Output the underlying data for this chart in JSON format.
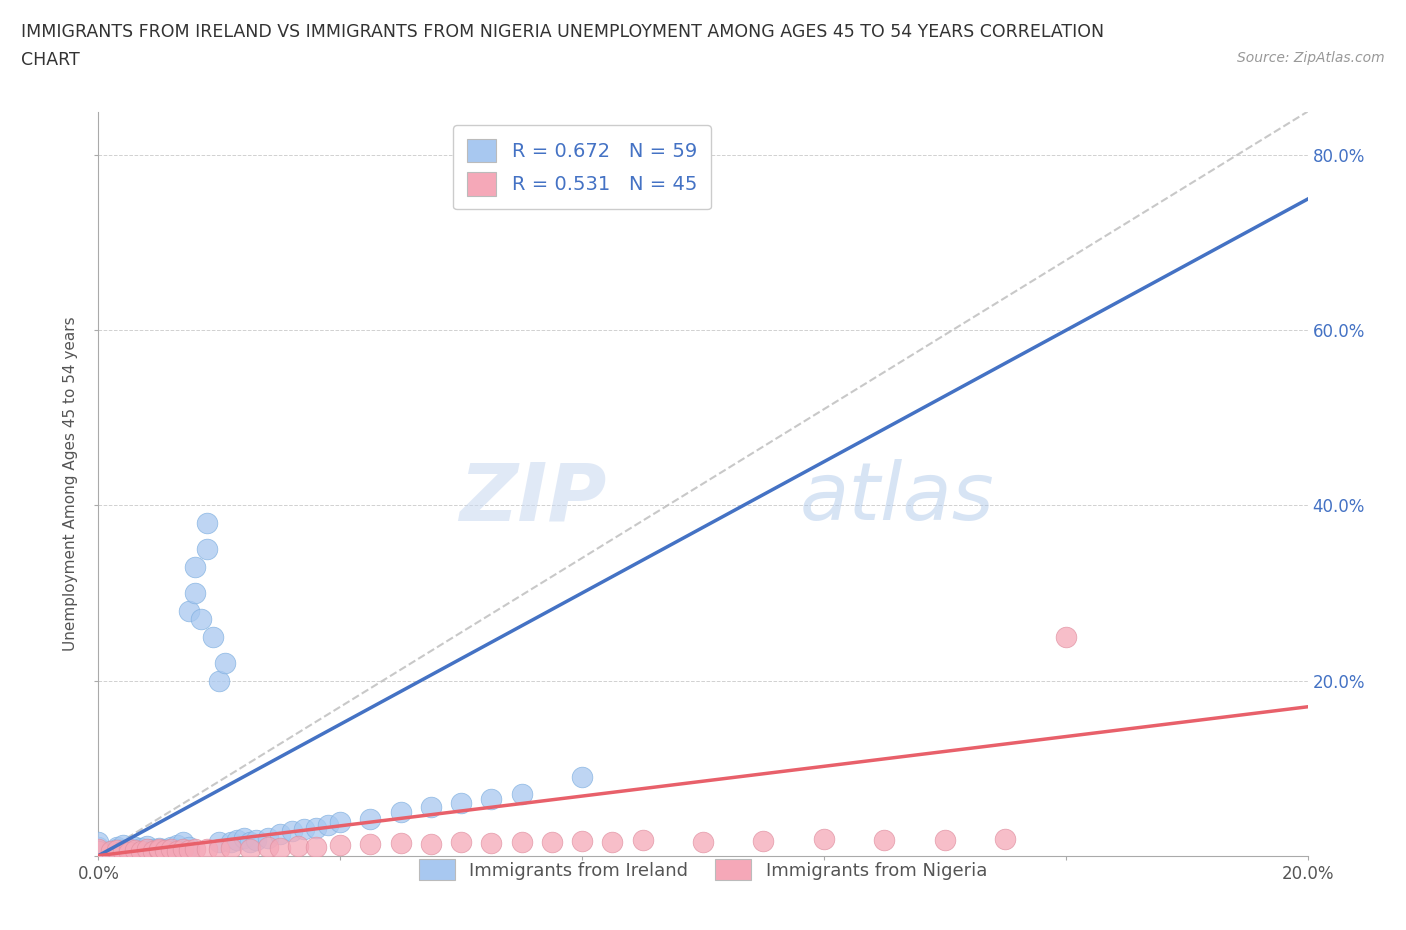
{
  "title_line1": "IMMIGRANTS FROM IRELAND VS IMMIGRANTS FROM NIGERIA UNEMPLOYMENT AMONG AGES 45 TO 54 YEARS CORRELATION",
  "title_line2": "CHART",
  "source_text": "Source: ZipAtlas.com",
  "ylabel": "Unemployment Among Ages 45 to 54 years",
  "xlim": [
    0.0,
    0.2
  ],
  "ylim": [
    0.0,
    0.85
  ],
  "x_ticks": [
    0.0,
    0.04,
    0.08,
    0.12,
    0.16,
    0.2
  ],
  "y_ticks": [
    0.0,
    0.2,
    0.4,
    0.6,
    0.8
  ],
  "ireland_color": "#a8c8f0",
  "nigeria_color": "#f5a8b8",
  "ireland_line_color": "#4472c4",
  "nigeria_line_color": "#e8606a",
  "diagonal_color": "#bbbbbb",
  "watermark_zip": "ZIP",
  "watermark_atlas": "atlas",
  "legend_ireland": "R = 0.672   N = 59",
  "legend_nigeria": "R = 0.531   N = 45",
  "ireland_scatter_x": [
    0.0,
    0.0,
    0.0,
    0.002,
    0.003,
    0.003,
    0.004,
    0.004,
    0.005,
    0.005,
    0.005,
    0.006,
    0.006,
    0.007,
    0.007,
    0.008,
    0.008,
    0.009,
    0.009,
    0.01,
    0.01,
    0.01,
    0.011,
    0.011,
    0.012,
    0.012,
    0.013,
    0.013,
    0.014,
    0.015,
    0.015,
    0.016,
    0.016,
    0.017,
    0.018,
    0.018,
    0.019,
    0.02,
    0.02,
    0.021,
    0.022,
    0.023,
    0.024,
    0.025,
    0.026,
    0.028,
    0.03,
    0.032,
    0.034,
    0.036,
    0.038,
    0.04,
    0.045,
    0.05,
    0.055,
    0.06,
    0.065,
    0.07,
    0.08
  ],
  "ireland_scatter_y": [
    0.01,
    0.015,
    0.005,
    0.005,
    0.01,
    0.008,
    0.006,
    0.012,
    0.005,
    0.007,
    0.003,
    0.008,
    0.01,
    0.006,
    0.009,
    0.007,
    0.011,
    0.005,
    0.008,
    0.006,
    0.009,
    0.004,
    0.008,
    0.005,
    0.01,
    0.007,
    0.012,
    0.008,
    0.015,
    0.01,
    0.28,
    0.33,
    0.3,
    0.27,
    0.35,
    0.38,
    0.25,
    0.016,
    0.2,
    0.22,
    0.015,
    0.018,
    0.02,
    0.015,
    0.018,
    0.02,
    0.025,
    0.028,
    0.03,
    0.032,
    0.035,
    0.038,
    0.042,
    0.05,
    0.055,
    0.06,
    0.065,
    0.07,
    0.09
  ],
  "nigeria_scatter_x": [
    0.0,
    0.0,
    0.002,
    0.003,
    0.004,
    0.005,
    0.005,
    0.006,
    0.007,
    0.008,
    0.009,
    0.01,
    0.01,
    0.011,
    0.012,
    0.013,
    0.014,
    0.015,
    0.016,
    0.018,
    0.02,
    0.022,
    0.025,
    0.028,
    0.03,
    0.033,
    0.036,
    0.04,
    0.045,
    0.05,
    0.055,
    0.06,
    0.065,
    0.07,
    0.075,
    0.08,
    0.085,
    0.09,
    0.1,
    0.11,
    0.12,
    0.13,
    0.14,
    0.15,
    0.16
  ],
  "nigeria_scatter_y": [
    0.005,
    0.008,
    0.005,
    0.006,
    0.005,
    0.007,
    0.004,
    0.006,
    0.005,
    0.007,
    0.005,
    0.006,
    0.008,
    0.006,
    0.007,
    0.005,
    0.008,
    0.006,
    0.007,
    0.008,
    0.007,
    0.009,
    0.008,
    0.01,
    0.009,
    0.011,
    0.01,
    0.012,
    0.013,
    0.014,
    0.013,
    0.015,
    0.014,
    0.016,
    0.015,
    0.017,
    0.016,
    0.018,
    0.016,
    0.017,
    0.019,
    0.018,
    0.018,
    0.019,
    0.25
  ]
}
